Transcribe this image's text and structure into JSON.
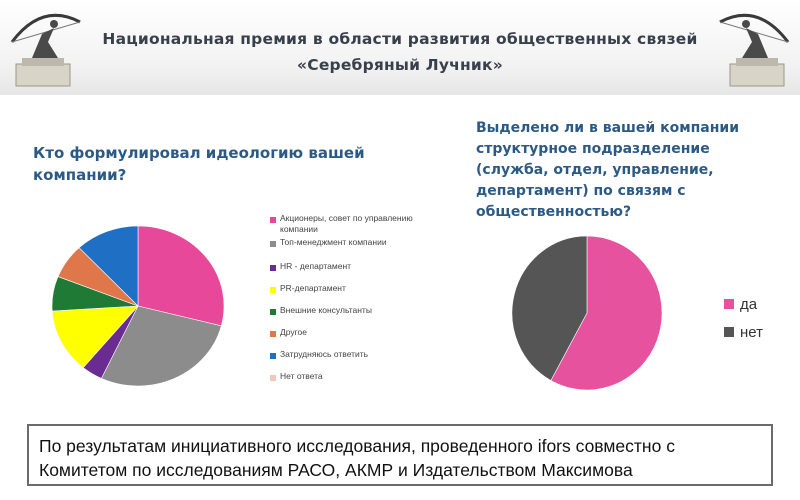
{
  "header": {
    "title_line1": "Национальная премия в области развития общественных связей",
    "title_line2": "«Серебряный Лучник»"
  },
  "left_question": "Кто формулировал идеологию вашей компании?",
  "right_question": "Выделено ли в вашей компании структурное подразделение (служба, отдел, управление, департамент) по связям с общественностью?",
  "chart_data": [
    {
      "type": "pie",
      "title": "Кто формулировал идеологию вашей компании?",
      "legend_position": "right",
      "labels": [
        "Акционеры, совет по управлению компании",
        "Топ-менеджмент компании",
        "HR - департамент",
        "PR-департамент",
        "Внешние консультанты",
        "Другое",
        "Затрудняюсь ответить",
        "Нет ответа"
      ],
      "values": [
        29,
        28,
        4,
        13,
        7,
        7,
        12,
        0
      ],
      "colors": [
        "#e8489a",
        "#8c8c8c",
        "#6b2c91",
        "#ffff00",
        "#1f7a35",
        "#e0774a",
        "#1f6fc4",
        "#f4c6b5"
      ]
    },
    {
      "type": "pie",
      "title": "Выделено ли в вашей компании структурное подразделение (служба, отдел, управление, департамент) по связям с общественностью?",
      "legend_position": "right",
      "labels": [
        "да",
        "нет"
      ],
      "values": [
        58,
        42
      ],
      "colors": [
        "#e6529e",
        "#555555"
      ]
    }
  ],
  "footer_text": "По результатам инициативного исследования, проведенного ifors совместно с Комитетом по исследованиям РАСО, АКМР и Издательством Максимова"
}
